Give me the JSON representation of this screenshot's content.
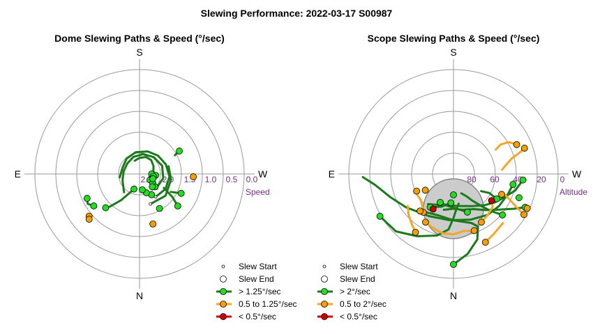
{
  "page": {
    "title": "Slewing Performance: 2022-03-17 S00987"
  },
  "colors": {
    "fast": "#1a7a1a",
    "fast_marker": "#22dd22",
    "medium": "#f5a623",
    "medium_marker": "#f5a000",
    "slow": "#cc0000",
    "grid": "#999999",
    "tick_label": "#7a2a8a",
    "obstruction": "#cccccc"
  },
  "chart_data": [
    {
      "type": "scatter",
      "subtype": "polar",
      "title": "Dome Slewing Paths & Speed (°/sec)",
      "cardinals": {
        "top": "S",
        "bottom": "N",
        "left": "E",
        "right": "W"
      },
      "radial_label": "Speed",
      "radial_ticks": [
        "2.5",
        "2.0",
        "1.5",
        "1.0",
        "0.5",
        "0.0"
      ],
      "radial_range": [
        2.5,
        0.0
      ],
      "grid": true,
      "legend": {
        "position": "bottom-right",
        "entries": [
          {
            "label": "Slew Start",
            "kind": "start"
          },
          {
            "label": "Slew End",
            "kind": "end"
          },
          {
            "label": "> 1.25°/sec",
            "kind": "fast"
          },
          {
            "label": "0.5 to 1.25°/sec",
            "kind": "medium"
          },
          {
            "label": "< 0.5°/sec",
            "kind": "slow"
          }
        ]
      },
      "end_points": [
        {
          "az": 120,
          "r": 2.3,
          "cls": "fast"
        },
        {
          "az": 125,
          "r": 2.2,
          "cls": "fast"
        },
        {
          "az": 130,
          "r": 2.1,
          "cls": "fast"
        },
        {
          "az": 135,
          "r": 2.15,
          "cls": "fast"
        },
        {
          "az": 150,
          "r": 2.0,
          "cls": "fast"
        },
        {
          "az": 160,
          "r": 2.1,
          "cls": "fast"
        },
        {
          "az": 170,
          "r": 2.2,
          "cls": "fast"
        },
        {
          "az": 95,
          "r": 2.2,
          "cls": "fast"
        },
        {
          "az": 90,
          "r": 2.3,
          "cls": "fast"
        },
        {
          "az": 100,
          "r": 2.25,
          "cls": "fast"
        },
        {
          "az": 110,
          "r": 2.25,
          "cls": "fast"
        },
        {
          "az": 200,
          "r": 2.2,
          "cls": "fast"
        },
        {
          "az": 225,
          "r": 1.4,
          "cls": "fast"
        },
        {
          "az": 235,
          "r": 1.2,
          "cls": "fast"
        },
        {
          "az": 245,
          "r": 1.15,
          "cls": "fast"
        },
        {
          "az": 130,
          "r": 1.35,
          "cls": "fast"
        },
        {
          "az": 115,
          "r": 1.45,
          "cls": "fast"
        },
        {
          "az": 60,
          "r": 1.45,
          "cls": "fast"
        },
        {
          "az": 150,
          "r": 1.6,
          "cls": "fast"
        },
        {
          "az": 230,
          "r": 0.95,
          "cls": "medium"
        },
        {
          "az": 228,
          "r": 0.9,
          "cls": "medium"
        },
        {
          "az": 165,
          "r": 1.3,
          "cls": "medium"
        },
        {
          "az": 93,
          "r": 1.25,
          "cls": "medium"
        }
      ],
      "paths": [
        {
          "cls": "fast",
          "pts": [
            [
              100,
              2.3
            ],
            [
              80,
              2.25
            ],
            [
              60,
              2.2
            ],
            [
              40,
              2.15
            ],
            [
              20,
              2.15
            ],
            [
              0,
              2.2
            ],
            [
              -20,
              2.25
            ]
          ]
        },
        {
          "cls": "fast",
          "pts": [
            [
              130,
              2.05
            ],
            [
              100,
              2.0
            ],
            [
              70,
              2.0
            ],
            [
              40,
              2.05
            ],
            [
              10,
              2.1
            ],
            [
              -20,
              2.15
            ],
            [
              -50,
              2.2
            ],
            [
              -80,
              2.2
            ],
            [
              -110,
              2.15
            ],
            [
              -140,
              2.0
            ]
          ]
        },
        {
          "cls": "fast",
          "pts": [
            [
              145,
              1.9
            ],
            [
              120,
              1.85
            ],
            [
              95,
              1.85
            ],
            [
              70,
              1.9
            ],
            [
              45,
              1.95
            ],
            [
              20,
              2.0
            ],
            [
              -10,
              2.05
            ],
            [
              -40,
              2.1
            ],
            [
              -70,
              2.15
            ],
            [
              -100,
              2.1
            ]
          ]
        },
        {
          "cls": "fast",
          "pts": [
            [
              160,
              1.8
            ],
            [
              130,
              1.75
            ],
            [
              100,
              1.8
            ],
            [
              75,
              1.85
            ]
          ]
        },
        {
          "cls": "fast",
          "pts": [
            [
              200,
              2.2
            ],
            [
              215,
              1.8
            ],
            [
              222,
              1.5
            ],
            [
              225,
              1.4
            ]
          ]
        },
        {
          "cls": "fast",
          "pts": [
            [
              235,
              1.2
            ],
            [
              240,
              1.1
            ],
            [
              245,
              1.15
            ]
          ]
        },
        {
          "cls": "fast",
          "pts": [
            [
              130,
              1.35
            ],
            [
              125,
              1.6
            ],
            [
              120,
              1.9
            ]
          ]
        },
        {
          "cls": "fast",
          "pts": [
            [
              115,
              1.45
            ],
            [
              120,
              1.7
            ]
          ]
        },
        {
          "cls": "fast",
          "pts": [
            [
              60,
              1.45
            ],
            [
              62,
              1.6
            ]
          ]
        },
        {
          "cls": "medium",
          "pts": [
            [
              165,
              1.3
            ],
            [
              168,
              1.32
            ]
          ]
        },
        {
          "cls": "medium",
          "pts": [
            [
              230,
              0.95
            ],
            [
              229,
              0.92
            ],
            [
              228,
              0.9
            ]
          ]
        }
      ]
    },
    {
      "type": "scatter",
      "subtype": "polar",
      "title": "Scope Slewing Paths & Speed (°/sec)",
      "cardinals": {
        "top": "S",
        "bottom": "N",
        "left": "E",
        "right": "W"
      },
      "radial_label": "Altitude",
      "radial_ticks": [
        "80",
        "60",
        "40",
        "20",
        "0"
      ],
      "radial_range": [
        90,
        0
      ],
      "grid": true,
      "obstruction": true,
      "legend": {
        "position": "bottom-right",
        "entries": [
          {
            "label": "Slew Start",
            "kind": "start"
          },
          {
            "label": "Slew End",
            "kind": "end"
          },
          {
            "label": "> 2°/sec",
            "kind": "fast"
          },
          {
            "label": "0.5 to 2°/sec",
            "kind": "medium"
          },
          {
            "label": "< 0.5°/sec",
            "kind": "slow"
          }
        ]
      },
      "end_points": [
        {
          "az": 180,
          "alt": 12,
          "cls": "fast"
        },
        {
          "az": 240,
          "alt": 17,
          "cls": "fast"
        },
        {
          "az": 115,
          "alt": 22,
          "cls": "fast"
        },
        {
          "az": 110,
          "alt": 30,
          "cls": "fast"
        },
        {
          "az": 100,
          "alt": 38,
          "cls": "fast"
        },
        {
          "az": 160,
          "alt": 55,
          "cls": "fast"
        },
        {
          "az": 185,
          "alt": 65,
          "cls": "fast"
        },
        {
          "az": 215,
          "alt": 55,
          "cls": "fast"
        },
        {
          "az": 205,
          "alt": 63,
          "cls": "fast"
        },
        {
          "az": 120,
          "alt": 47,
          "cls": "fast"
        },
        {
          "az": 95,
          "alt": 30,
          "cls": "fast"
        },
        {
          "az": 130,
          "alt": 35,
          "cls": "fast"
        },
        {
          "az": 180,
          "alt": 72,
          "cls": "fast"
        },
        {
          "az": 210,
          "alt": 42,
          "cls": "medium"
        },
        {
          "az": 218,
          "alt": 48,
          "cls": "medium"
        },
        {
          "az": 222,
          "alt": 47,
          "cls": "medium"
        },
        {
          "az": 213,
          "alt": 30,
          "cls": "medium"
        },
        {
          "az": 120,
          "alt": 20,
          "cls": "medium"
        },
        {
          "az": 115,
          "alt": 20,
          "cls": "medium"
        },
        {
          "az": 70,
          "alt": 25,
          "cls": "medium"
        },
        {
          "az": 65,
          "alt": 30,
          "cls": "medium"
        },
        {
          "az": 160,
          "alt": 38,
          "cls": "medium"
        },
        {
          "az": 150,
          "alt": 42,
          "cls": "medium"
        },
        {
          "az": 155,
          "alt": 25,
          "cls": "medium"
        },
        {
          "az": 245,
          "alt": 55,
          "cls": "medium"
        },
        {
          "az": 113,
          "alt": 45,
          "cls": "medium"
        },
        {
          "az": 240,
          "alt": 62,
          "cls": "medium"
        },
        {
          "az": 210,
          "alt": 55,
          "cls": "slow"
        },
        {
          "az": 125,
          "alt": 50,
          "cls": "slow"
        }
      ],
      "paths": [
        {
          "cls": "fast",
          "pts": [
            [
              180,
              12
            ],
            [
              170,
              20
            ],
            [
              160,
              30
            ],
            [
              155,
              40
            ],
            [
              160,
              45
            ],
            [
              180,
              50
            ],
            [
              200,
              52
            ],
            [
              220,
              48
            ]
          ]
        },
        {
          "cls": "fast",
          "pts": [
            [
              240,
              17
            ],
            [
              225,
              20
            ],
            [
              210,
              28
            ],
            [
              195,
              35
            ],
            [
              185,
              42
            ],
            [
              180,
              52
            ],
            [
              175,
              60
            ],
            [
              170,
              64
            ]
          ]
        },
        {
          "cls": "fast",
          "pts": [
            [
              115,
              22
            ],
            [
              120,
              30
            ],
            [
              128,
              40
            ],
            [
              138,
              48
            ],
            [
              150,
              55
            ],
            [
              165,
              58
            ],
            [
              180,
              60
            ],
            [
              195,
              58
            ]
          ]
        },
        {
          "cls": "fast",
          "pts": [
            [
              100,
              38
            ],
            [
              110,
              40
            ],
            [
              125,
              42
            ],
            [
              140,
              44
            ],
            [
              160,
              48
            ],
            [
              185,
              50
            ],
            [
              210,
              48
            ],
            [
              235,
              40
            ],
            [
              250,
              32
            ],
            [
              262,
              22
            ],
            [
              268,
              12
            ]
          ]
        },
        {
          "cls": "fast",
          "pts": [
            [
              95,
              30
            ],
            [
              105,
              35
            ],
            [
              115,
              42
            ],
            [
              125,
              47
            ],
            [
              135,
              52
            ],
            [
              150,
              58
            ],
            [
              170,
              62
            ],
            [
              195,
              62
            ],
            [
              220,
              56
            ]
          ]
        },
        {
          "cls": "fast",
          "pts": [
            [
              130,
              35
            ],
            [
              135,
              45
            ],
            [
              140,
              55
            ],
            [
              145,
              62
            ],
            [
              150,
              68
            ],
            [
              158,
              72
            ]
          ]
        },
        {
          "cls": "fast",
          "pts": [
            [
              160,
              55
            ],
            [
              175,
              60
            ],
            [
              190,
              62
            ],
            [
              205,
              63
            ]
          ]
        },
        {
          "cls": "fast",
          "pts": [
            [
              185,
              65
            ],
            [
              200,
              60
            ],
            [
              215,
              55
            ]
          ]
        },
        {
          "cls": "fast",
          "pts": [
            [
              120,
              47
            ],
            [
              118,
              55
            ],
            [
              122,
              62
            ]
          ]
        },
        {
          "cls": "medium",
          "pts": [
            [
              210,
              42
            ],
            [
              200,
              40
            ],
            [
              190,
              38
            ],
            [
              180,
              38
            ],
            [
              170,
              40
            ],
            [
              160,
              38
            ]
          ]
        },
        {
          "cls": "medium",
          "pts": [
            [
              218,
              48
            ],
            [
              225,
              52
            ],
            [
              232,
              54
            ],
            [
              240,
              54
            ],
            [
              245,
              55
            ]
          ]
        },
        {
          "cls": "medium",
          "pts": [
            [
              213,
              30
            ],
            [
              220,
              34
            ],
            [
              228,
              38
            ],
            [
              235,
              42
            ]
          ]
        },
        {
          "cls": "medium",
          "pts": [
            [
              120,
              20
            ],
            [
              118,
              28
            ],
            [
              115,
              36
            ],
            [
              112,
              42
            ],
            [
              113,
              45
            ]
          ]
        },
        {
          "cls": "medium",
          "pts": [
            [
              70,
              25
            ],
            [
              72,
              30
            ],
            [
              75,
              38
            ],
            [
              80,
              44
            ],
            [
              85,
              48
            ]
          ]
        },
        {
          "cls": "medium",
          "pts": [
            [
              65,
              30
            ],
            [
              60,
              35
            ],
            [
              58,
              42
            ],
            [
              60,
              48
            ]
          ]
        },
        {
          "cls": "medium",
          "pts": [
            [
              150,
              42
            ],
            [
              140,
              44
            ],
            [
              130,
              46
            ],
            [
              125,
              50
            ]
          ]
        },
        {
          "cls": "medium",
          "pts": [
            [
              155,
              25
            ],
            [
              145,
              28
            ],
            [
              135,
              30
            ]
          ]
        },
        {
          "cls": "slow",
          "pts": [
            [
              210,
              55
            ],
            [
              212,
              56
            ]
          ]
        },
        {
          "cls": "slow",
          "pts": [
            [
              125,
              50
            ],
            [
              126,
              51
            ]
          ]
        }
      ]
    }
  ]
}
